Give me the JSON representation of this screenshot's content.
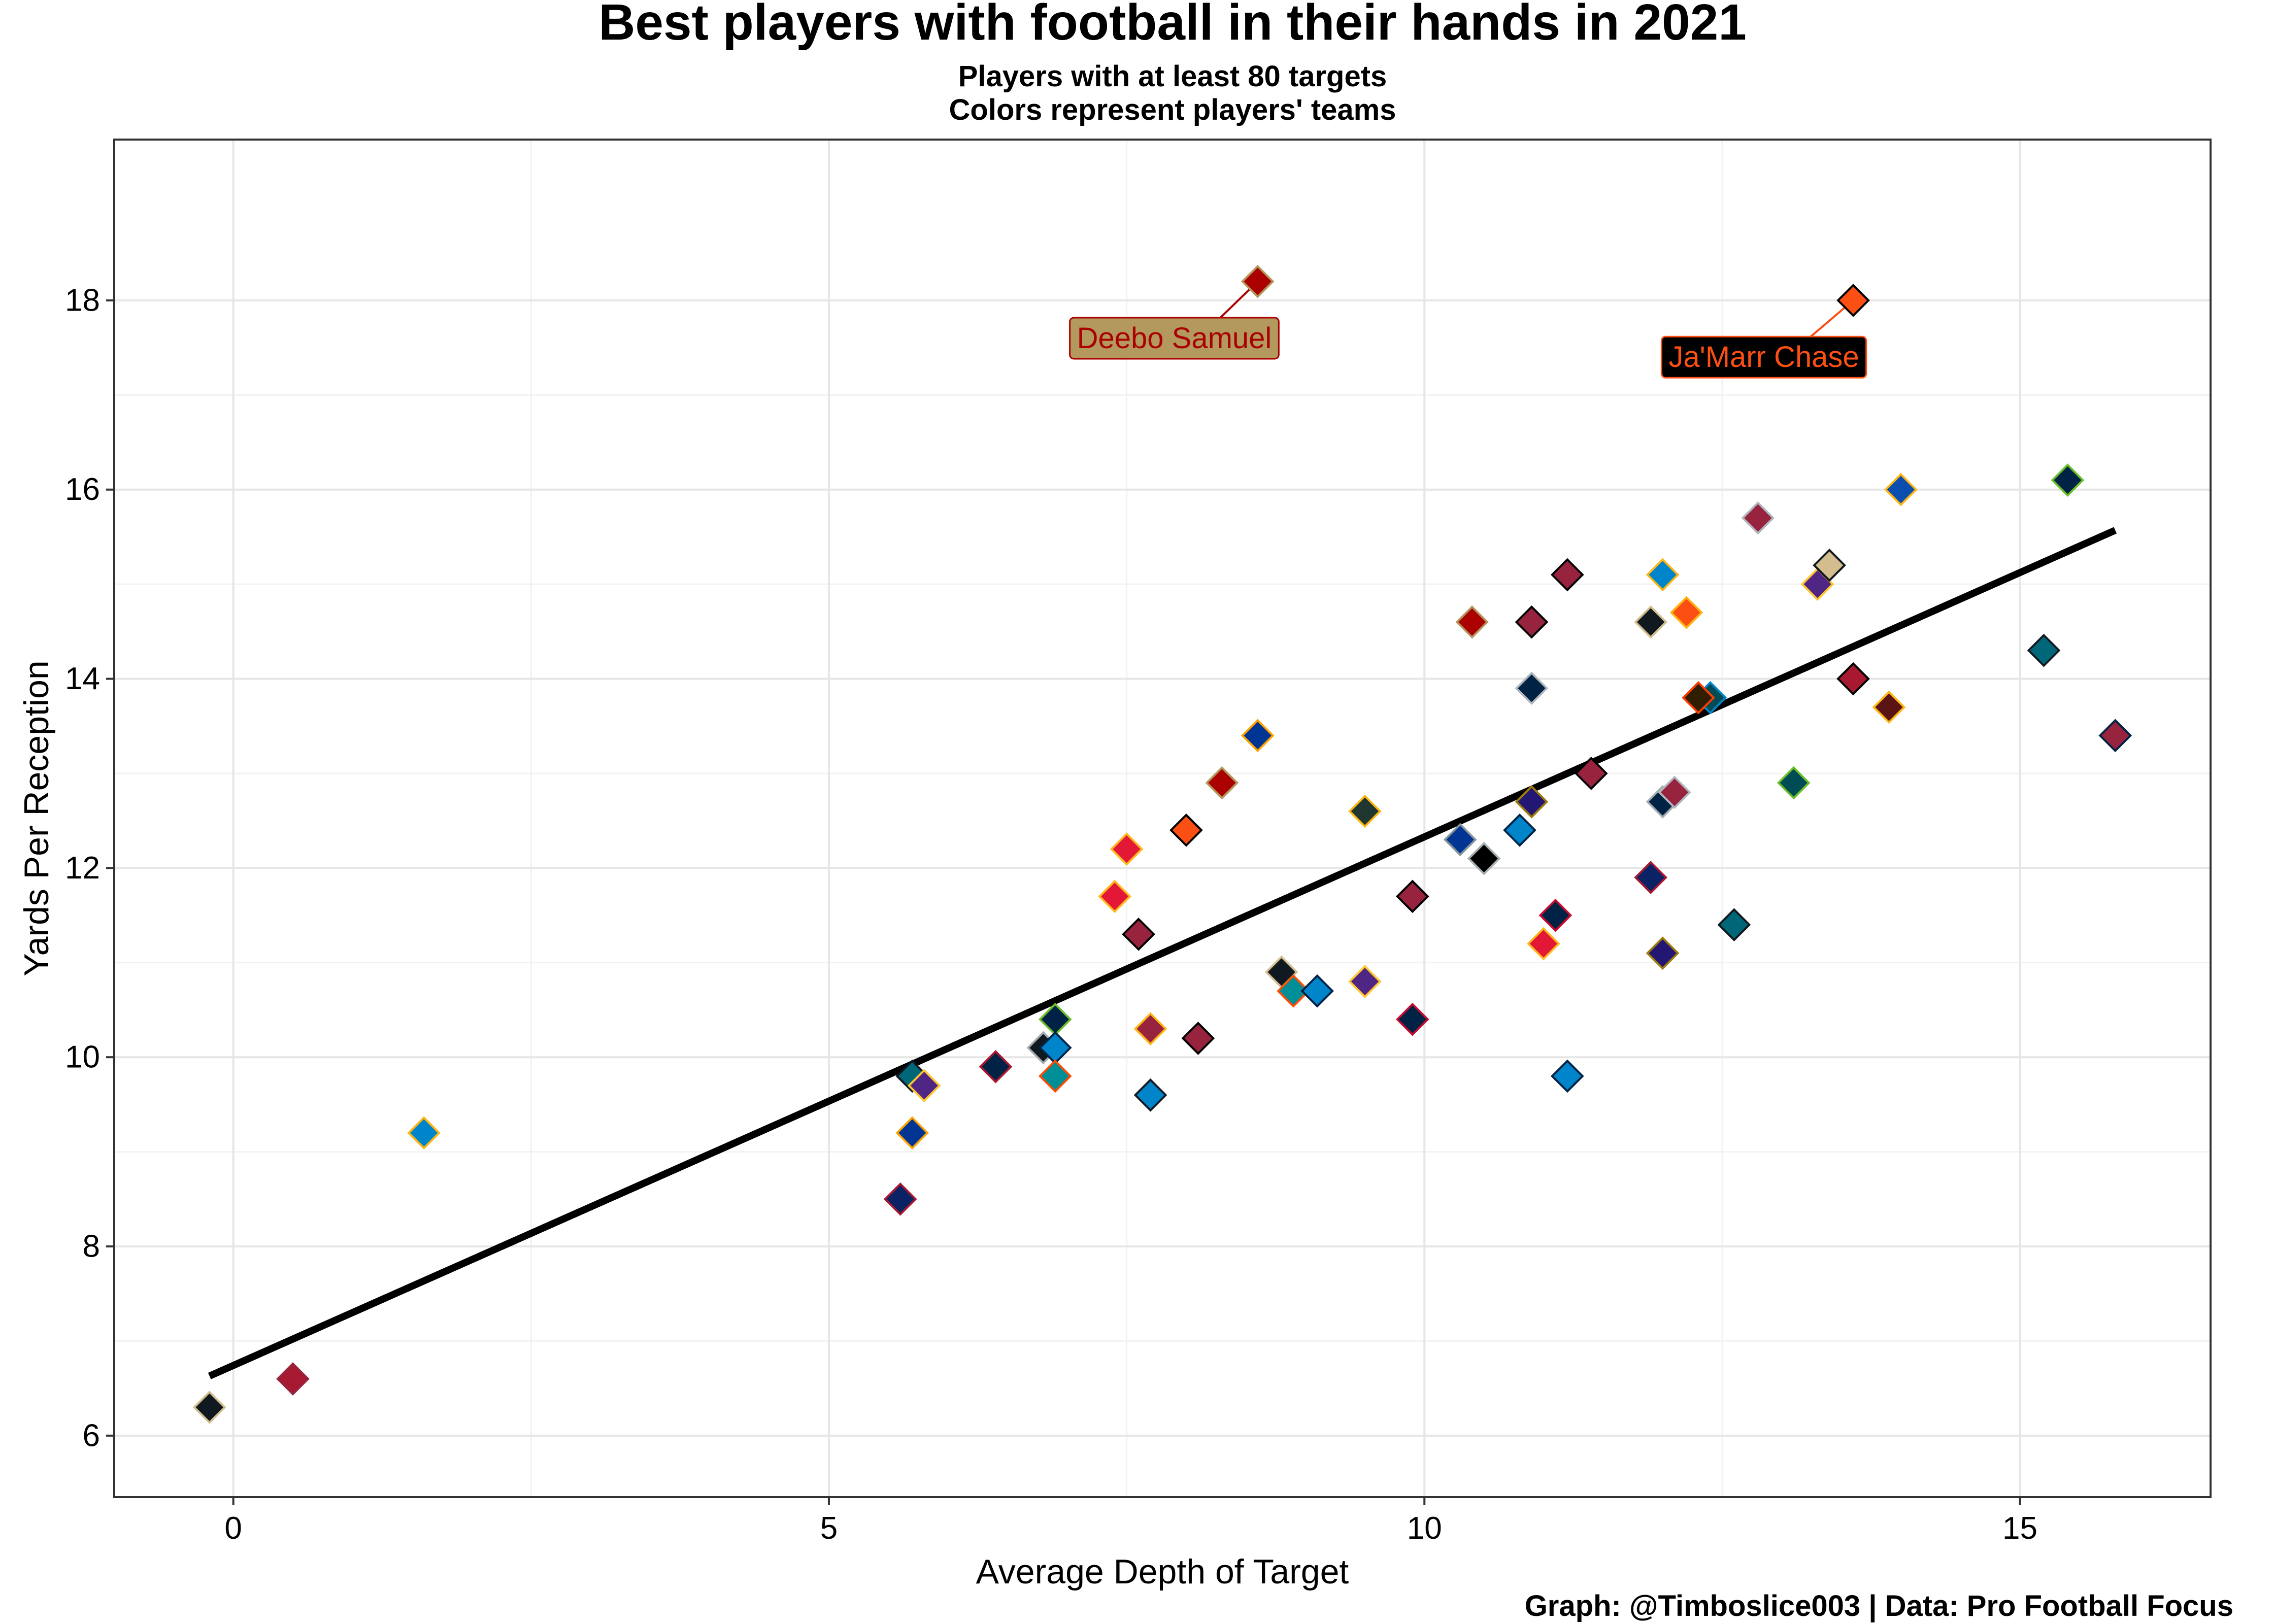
{
  "chart_data": {
    "type": "scatter",
    "title": "Best players with football in their hands in 2021",
    "subtitle": [
      "Players with at least 80 targets",
      "Colors represent players' teams"
    ],
    "xlabel": "Average Depth of Target",
    "ylabel": "Yards Per Reception",
    "caption": "Graph: @Timboslice003 | Data: Pro Football Focus",
    "xlim": [
      -1.0,
      16.6
    ],
    "ylim": [
      5.35,
      19.7
    ],
    "x_ticks": [
      0,
      5,
      10,
      15
    ],
    "y_ticks": [
      6,
      8,
      10,
      12,
      14,
      16,
      18
    ],
    "grid": true,
    "trend_line": {
      "x": [
        -0.2,
        15.8
      ],
      "y": [
        6.63,
        15.57
      ],
      "color": "#000000"
    },
    "annotations": [
      {
        "text": "Deebo Samuel",
        "x": 8.6,
        "y": 18.2,
        "label_x": 7.9,
        "label_y": 17.6,
        "text_color": "#AA0000",
        "fill": "#B3995D",
        "border": "#AA0000"
      },
      {
        "text": "Ja'Marr Chase",
        "x": 13.6,
        "y": 18.0,
        "label_x": 12.85,
        "label_y": 17.4,
        "text_color": "#FB4F14",
        "fill": "#000000",
        "border": "#FB4F14"
      }
    ],
    "points": [
      {
        "x": -0.2,
        "y": 6.3,
        "fill": "#101820",
        "stroke": "#D3BC8D"
      },
      {
        "x": 0.5,
        "y": 6.6,
        "fill": "#A71930",
        "stroke": "#97233F"
      },
      {
        "x": 1.6,
        "y": 9.2,
        "fill": "#0085CA",
        "stroke": "#FFB612"
      },
      {
        "x": 5.6,
        "y": 8.5,
        "fill": "#0B2265",
        "stroke": "#A71930"
      },
      {
        "x": 5.7,
        "y": 9.2,
        "fill": "#003594",
        "stroke": "#FFA300"
      },
      {
        "x": 5.7,
        "y": 9.8,
        "fill": "#006778",
        "stroke": "#101820"
      },
      {
        "x": 5.8,
        "y": 9.7,
        "fill": "#4F2683",
        "stroke": "#FFC62F"
      },
      {
        "x": 6.4,
        "y": 9.9,
        "fill": "#002244",
        "stroke": "#A71930"
      },
      {
        "x": 6.8,
        "y": 10.1,
        "fill": "#101820",
        "stroke": "#A5ACAF"
      },
      {
        "x": 6.9,
        "y": 10.4,
        "fill": "#002244",
        "stroke": "#69BE28"
      },
      {
        "x": 6.9,
        "y": 10.1,
        "fill": "#0085CA",
        "stroke": "#002244"
      },
      {
        "x": 6.9,
        "y": 9.8,
        "fill": "#008E97",
        "stroke": "#FC4C02"
      },
      {
        "x": 7.4,
        "y": 11.7,
        "fill": "#E31837",
        "stroke": "#FFB81C"
      },
      {
        "x": 7.5,
        "y": 12.2,
        "fill": "#E31837",
        "stroke": "#FFB81C"
      },
      {
        "x": 7.6,
        "y": 11.3,
        "fill": "#97233F",
        "stroke": "#000000"
      },
      {
        "x": 7.7,
        "y": 10.3,
        "fill": "#97233F",
        "stroke": "#FFB612"
      },
      {
        "x": 7.7,
        "y": 9.6,
        "fill": "#0085CA",
        "stroke": "#101820"
      },
      {
        "x": 8.0,
        "y": 12.4,
        "fill": "#FB4F14",
        "stroke": "#000000"
      },
      {
        "x": 8.1,
        "y": 10.2,
        "fill": "#97233F",
        "stroke": "#000000"
      },
      {
        "x": 8.3,
        "y": 12.9,
        "fill": "#AA0000",
        "stroke": "#B3995D"
      },
      {
        "x": 8.6,
        "y": 13.4,
        "fill": "#003594",
        "stroke": "#FFA300"
      },
      {
        "x": 8.6,
        "y": 18.2,
        "fill": "#AA0000",
        "stroke": "#B3995D"
      },
      {
        "x": 8.8,
        "y": 10.9,
        "fill": "#101820",
        "stroke": "#D3BC8D"
      },
      {
        "x": 8.9,
        "y": 10.7,
        "fill": "#008E97",
        "stroke": "#FC4C02"
      },
      {
        "x": 9.1,
        "y": 10.7,
        "fill": "#0085CA",
        "stroke": "#002244"
      },
      {
        "x": 9.5,
        "y": 12.6,
        "fill": "#203731",
        "stroke": "#FFB612"
      },
      {
        "x": 9.5,
        "y": 10.8,
        "fill": "#4F2683",
        "stroke": "#FFC62F"
      },
      {
        "x": 9.9,
        "y": 11.7,
        "fill": "#97233F",
        "stroke": "#000000"
      },
      {
        "x": 9.9,
        "y": 10.4,
        "fill": "#002244",
        "stroke": "#C60C30"
      },
      {
        "x": 10.3,
        "y": 12.3,
        "fill": "#003594",
        "stroke": "#869397"
      },
      {
        "x": 10.5,
        "y": 12.1,
        "fill": "#000000",
        "stroke": "#A5ACAF"
      },
      {
        "x": 10.4,
        "y": 14.6,
        "fill": "#AA0000",
        "stroke": "#B3995D"
      },
      {
        "x": 10.8,
        "y": 12.4,
        "fill": "#0085CA",
        "stroke": "#002244"
      },
      {
        "x": 10.9,
        "y": 14.6,
        "fill": "#97233F",
        "stroke": "#000000"
      },
      {
        "x": 10.9,
        "y": 13.9,
        "fill": "#002244",
        "stroke": "#B0B7BC"
      },
      {
        "x": 10.9,
        "y": 12.7,
        "fill": "#241773",
        "stroke": "#9E7C0C"
      },
      {
        "x": 11.0,
        "y": 11.2,
        "fill": "#E31837",
        "stroke": "#FFB81C"
      },
      {
        "x": 11.1,
        "y": 11.5,
        "fill": "#002244",
        "stroke": "#C60C30"
      },
      {
        "x": 11.2,
        "y": 15.1,
        "fill": "#97233F",
        "stroke": "#000000"
      },
      {
        "x": 11.2,
        "y": 9.8,
        "fill": "#0085CA",
        "stroke": "#002244"
      },
      {
        "x": 11.4,
        "y": 13.0,
        "fill": "#97233F",
        "stroke": "#000000"
      },
      {
        "x": 11.9,
        "y": 14.6,
        "fill": "#101820",
        "stroke": "#D3BC8D"
      },
      {
        "x": 11.9,
        "y": 11.9,
        "fill": "#0B2265",
        "stroke": "#A71930"
      },
      {
        "x": 12.0,
        "y": 15.1,
        "fill": "#0085CA",
        "stroke": "#FFB612"
      },
      {
        "x": 12.0,
        "y": 12.7,
        "fill": "#002244",
        "stroke": "#A5ACAF"
      },
      {
        "x": 12.1,
        "y": 12.8,
        "fill": "#97233F",
        "stroke": "#B0B7BC"
      },
      {
        "x": 12.0,
        "y": 11.1,
        "fill": "#241773",
        "stroke": "#9E7C0C"
      },
      {
        "x": 12.2,
        "y": 14.7,
        "fill": "#FB4F14",
        "stroke": "#FFB612"
      },
      {
        "x": 12.4,
        "y": 13.8,
        "fill": "#004C54",
        "stroke": "#0085CA"
      },
      {
        "x": 12.3,
        "y": 13.8,
        "fill": "#311D00",
        "stroke": "#FF3C00"
      },
      {
        "x": 12.6,
        "y": 11.4,
        "fill": "#006778",
        "stroke": "#101820"
      },
      {
        "x": 12.8,
        "y": 15.7,
        "fill": "#97233F",
        "stroke": "#B0B7BC"
      },
      {
        "x": 13.1,
        "y": 12.9,
        "fill": "#004C54",
        "stroke": "#69BE28"
      },
      {
        "x": 13.3,
        "y": 15.0,
        "fill": "#4F2683",
        "stroke": "#FFC62F"
      },
      {
        "x": 13.4,
        "y": 15.2,
        "fill": "#D3BC8D",
        "stroke": "#101820"
      },
      {
        "x": 13.6,
        "y": 18.0,
        "fill": "#FB4F14",
        "stroke": "#000000"
      },
      {
        "x": 13.6,
        "y": 14.0,
        "fill": "#A71930",
        "stroke": "#000000"
      },
      {
        "x": 13.9,
        "y": 13.7,
        "fill": "#5A1414",
        "stroke": "#FFB612"
      },
      {
        "x": 14.0,
        "y": 16.0,
        "fill": "#0B4EAD",
        "stroke": "#FFB612"
      },
      {
        "x": 15.2,
        "y": 14.3,
        "fill": "#006778",
        "stroke": "#101820"
      },
      {
        "x": 15.4,
        "y": 16.1,
        "fill": "#002244",
        "stroke": "#69BE28"
      },
      {
        "x": 15.8,
        "y": 13.4,
        "fill": "#97233F",
        "stroke": "#002244"
      }
    ]
  }
}
